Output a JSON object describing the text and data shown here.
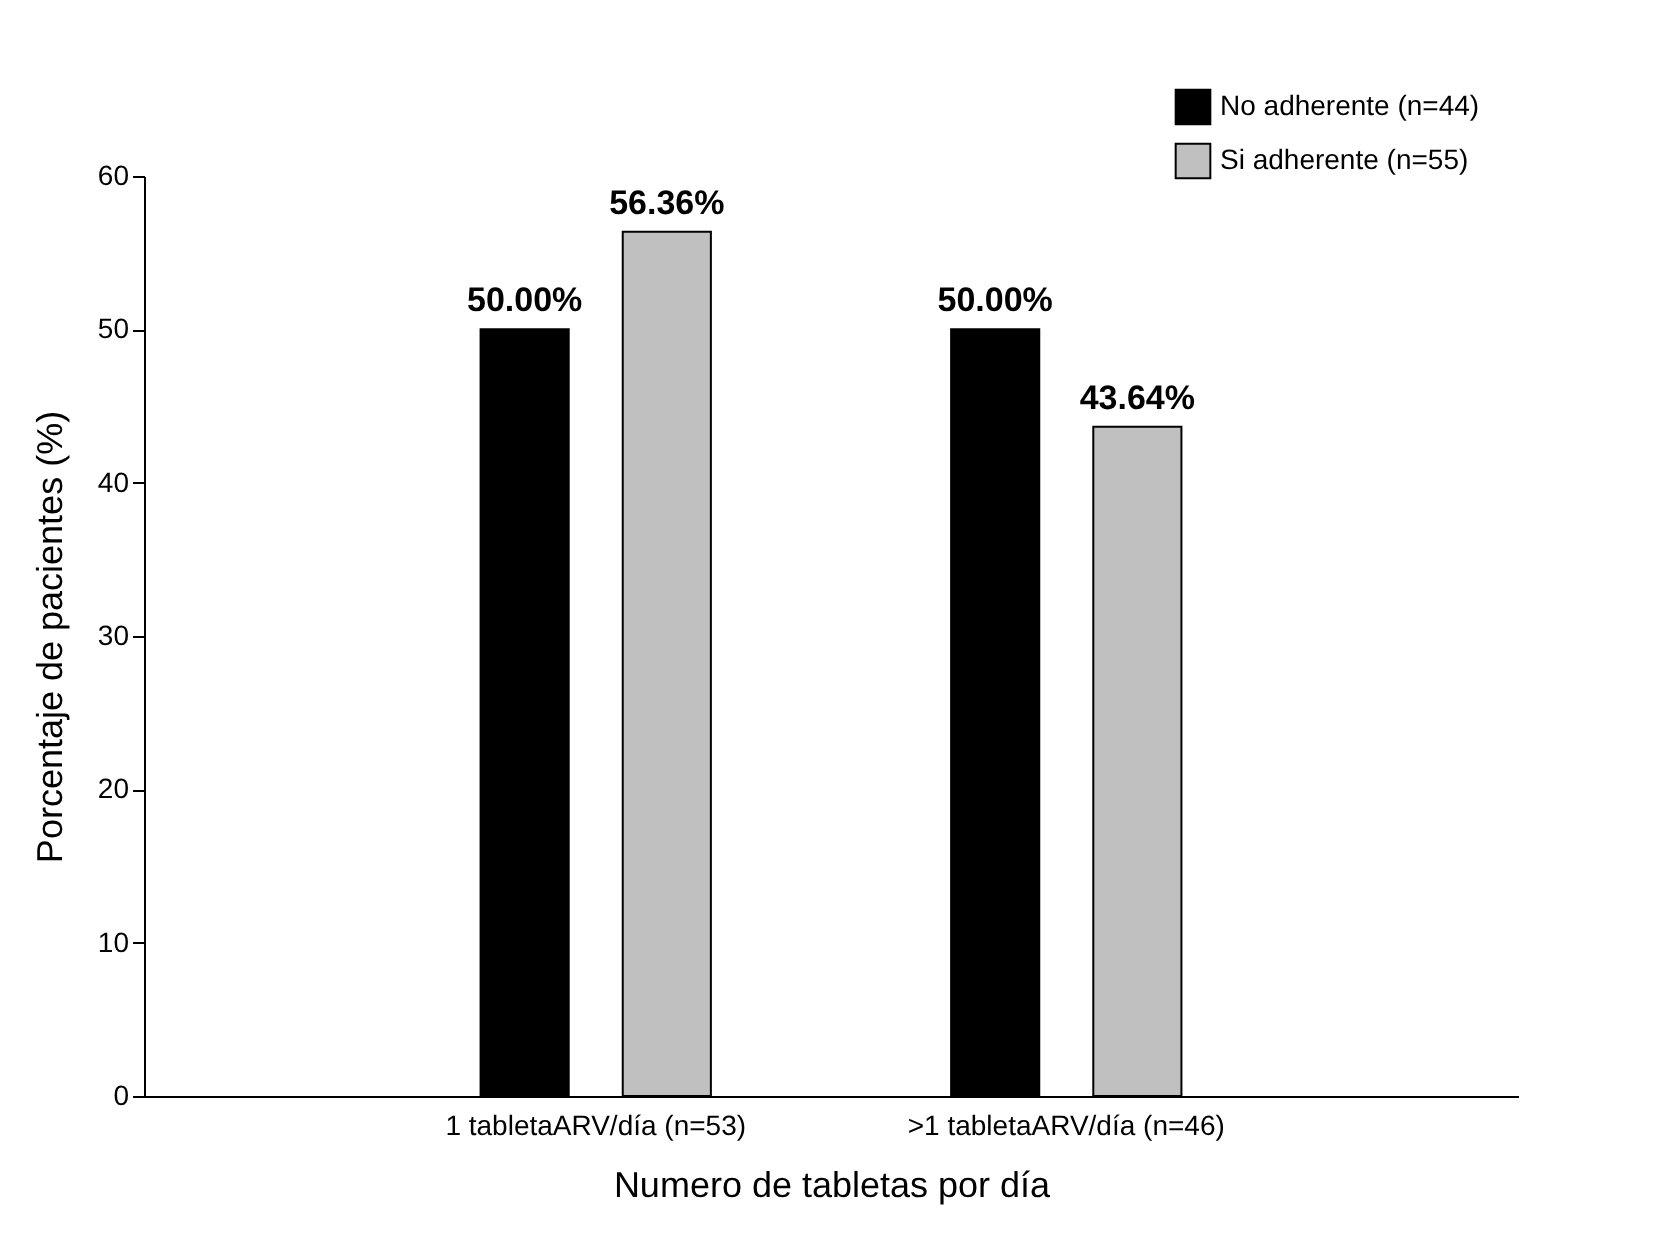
{
  "chart_data": {
    "type": "bar",
    "xlabel": "Numero de tabletas por día",
    "ylabel": "Porcentaje de pacientes (%)",
    "categories": [
      "1 tabletaARV/día (n=53)",
      ">1 tabletaARV/día (n=46)"
    ],
    "series": [
      {
        "name": "No adherente (n=44)",
        "color": "#000000",
        "values": [
          50.0,
          50.0
        ],
        "value_labels": [
          "50.00%",
          "50.00%"
        ]
      },
      {
        "name": "Si adherente (n=55)",
        "color": "#c0c0c0",
        "values": [
          56.36,
          43.64
        ],
        "value_labels": [
          "56.36%",
          "43.64%"
        ]
      }
    ],
    "ylim": [
      0,
      60
    ],
    "yticks": [
      0,
      10,
      20,
      30,
      40,
      50,
      60
    ],
    "grid": false,
    "legend": "top right"
  }
}
